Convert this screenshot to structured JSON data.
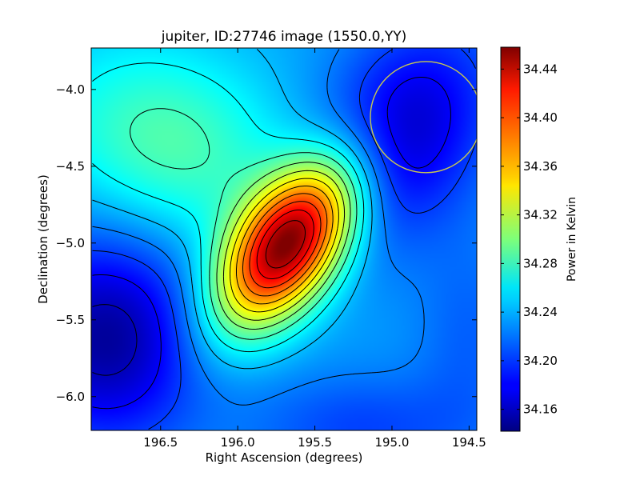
{
  "chart_data": {
    "type": "heatmap",
    "title": "jupiter, ID:27746 image (1550.0,YY)",
    "xlabel": "Right Ascension (degrees)",
    "ylabel": "Declination (degrees)",
    "xlim": [
      196.95,
      194.45
    ],
    "ylim": [
      -6.22,
      -3.73
    ],
    "x_ticks": [
      196.5,
      196.0,
      195.5,
      195.0,
      194.5
    ],
    "x_tick_labels": [
      "196.5",
      "196.0",
      "195.5",
      "195.0",
      "194.5"
    ],
    "y_ticks": [
      -4.0,
      -4.5,
      -5.0,
      -5.5,
      -6.0
    ],
    "y_tick_labels": [
      "−4.0",
      "−4.5",
      "−5.0",
      "−5.5",
      "−6.0"
    ],
    "colorbar": {
      "label": "Power in Kelvin",
      "range": [
        34.142,
        34.458
      ],
      "colormap": "jet",
      "ticks": [
        34.16,
        34.2,
        34.24,
        34.28,
        34.32,
        34.36,
        34.4,
        34.44
      ],
      "tick_labels": [
        "34.16",
        "34.20",
        "34.24",
        "34.28",
        "34.32",
        "34.36",
        "34.40",
        "34.44"
      ]
    },
    "features": {
      "peak": {
        "ra": 195.67,
        "dec": -5.0,
        "value": 34.452
      },
      "minima": [
        {
          "ra": 196.85,
          "dec": -5.62,
          "value": 34.15
        },
        {
          "ra": 194.95,
          "dec": -4.3,
          "value": 34.16
        }
      ]
    },
    "overlay_circle": {
      "center_ra": 194.78,
      "center_dec": -4.18,
      "radius_deg": 0.36,
      "color": "#c8c850"
    },
    "contours": "black lines, approx. 0.02 K spacing"
  }
}
